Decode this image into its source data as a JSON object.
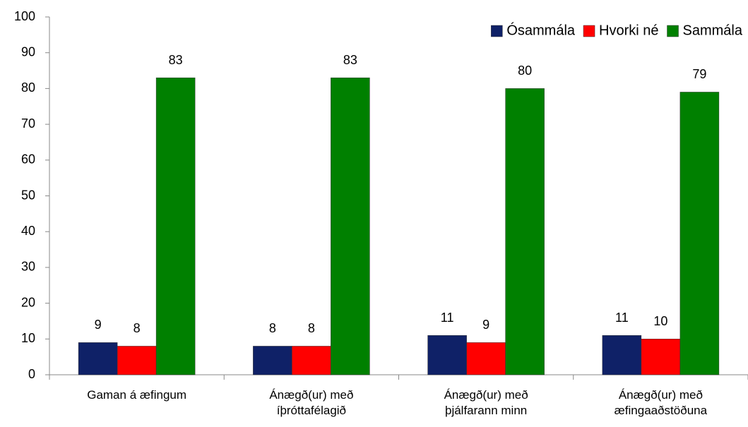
{
  "chart_data": {
    "type": "bar",
    "categories": [
      "Gaman á æfingum",
      "Ánægð(ur) með íþróttafélagið",
      "Ánægð(ur) með þjálfarann minn",
      "Ánægð(ur) með æfingaaðstöðuna"
    ],
    "series": [
      {
        "name": "Ósammála",
        "color": "#0f2167",
        "values": [
          9,
          8,
          11,
          11
        ]
      },
      {
        "name": "Hvorki né",
        "color": "#ff0000",
        "values": [
          8,
          8,
          9,
          10
        ]
      },
      {
        "name": "Sammála",
        "color": "#008000",
        "values": [
          83,
          83,
          80,
          79
        ]
      }
    ],
    "ylim": [
      0,
      100
    ],
    "yticks": [
      0,
      10,
      20,
      30,
      40,
      50,
      60,
      70,
      80,
      90,
      100
    ],
    "legend": "top-right"
  }
}
